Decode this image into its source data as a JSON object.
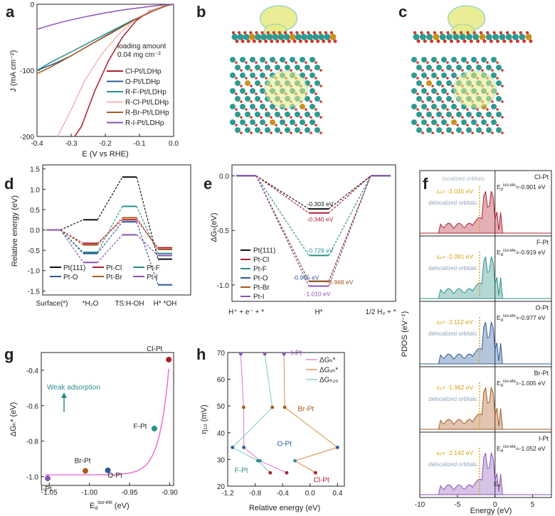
{
  "panel_labels": [
    "a",
    "b",
    "c",
    "d",
    "e",
    "f",
    "g",
    "h"
  ],
  "colors": {
    "Cl": "#b01c2e",
    "O": "#2c5a9a",
    "F": "#2a8f8a",
    "Br": "#a8591e",
    "I": "#8a52b5",
    "Pt111": "#111111",
    "RCl": "#f2b6b6",
    "atom_teal": "#2f9a90",
    "atom_red": "#cc3b2c",
    "atom_gold": "#c8921c",
    "cloud": "#e8ec8a",
    "cloud_edge": "#7fc9c0"
  },
  "chart_data": [
    {
      "id": "a",
      "type": "line",
      "xlabel": "E (V vs RHE)",
      "ylabel": "J (mA cm⁻²)",
      "xlim": [
        -0.4,
        0.0
      ],
      "ylim": [
        -200,
        0
      ],
      "xticks": [
        -0.4,
        -0.3,
        -0.2,
        -0.1,
        0.0
      ],
      "xtick_labels": [
        "-0.4",
        "-0.3",
        "-0.2",
        "-0.1",
        "0.0"
      ],
      "yticks": [
        0,
        -100,
        -200
      ],
      "ytick_labels": [
        "0",
        "-100",
        "-200"
      ],
      "annotation": [
        "loading amount",
        "0.04 mg cm⁻²"
      ],
      "series": [
        {
          "name": "Cl-Pt/LDHp",
          "color": "#b01c2e",
          "x": [
            0,
            -0.03,
            -0.07,
            -0.11,
            -0.15,
            -0.19,
            -0.23,
            -0.27,
            -0.29
          ],
          "y": [
            0,
            -3,
            -10,
            -25,
            -50,
            -85,
            -130,
            -185,
            -200
          ]
        },
        {
          "name": "O-Pt/LDHp",
          "color": "#2c5a9a",
          "x": [
            0,
            -0.02,
            -0.06,
            -0.12,
            -0.18,
            -0.24,
            -0.3,
            -0.35,
            -0.4
          ],
          "y": [
            0,
            -2,
            -10,
            -25,
            -42,
            -60,
            -78,
            -90,
            -100
          ]
        },
        {
          "name": "R-F-Pt/LDHp",
          "color": "#2a8f8a",
          "x": [
            0,
            -0.02,
            -0.06,
            -0.12,
            -0.18,
            -0.24,
            -0.3,
            -0.36,
            -0.4
          ],
          "y": [
            0,
            -2,
            -10,
            -24,
            -40,
            -56,
            -72,
            -88,
            -100
          ]
        },
        {
          "name": "R-Cl-Pt/LDHp",
          "color": "#f2b6b6",
          "x": [
            0,
            -0.02,
            -0.06,
            -0.11,
            -0.16,
            -0.21,
            -0.26,
            -0.3,
            -0.34
          ],
          "y": [
            0,
            -2,
            -8,
            -22,
            -45,
            -75,
            -115,
            -160,
            -200
          ]
        },
        {
          "name": "R-Br-Pt/LDHp",
          "color": "#a8591e",
          "x": [
            0,
            -0.02,
            -0.06,
            -0.12,
            -0.18,
            -0.24,
            -0.3,
            -0.36,
            -0.4
          ],
          "y": [
            0,
            -2,
            -10,
            -25,
            -43,
            -60,
            -78,
            -95,
            -105
          ]
        },
        {
          "name": "R-I-Pt/LDHp",
          "color": "#8a52b5",
          "x": [
            0,
            -0.03,
            -0.08,
            -0.14,
            -0.2,
            -0.26,
            -0.32,
            -0.37,
            -0.4
          ],
          "y": [
            0,
            -1,
            -4,
            -8,
            -13,
            -19,
            -26,
            -33,
            -38
          ]
        }
      ]
    },
    {
      "id": "d",
      "type": "line",
      "title": "",
      "ylabel": "Relative energy (eV)",
      "categories": [
        "Surface(*)",
        "*H₂O",
        "TS:H-OH",
        "H* *OH"
      ],
      "ylim": [
        -1.6,
        1.6
      ],
      "yticks": [
        1.5,
        1.0,
        0.5,
        0.0,
        -0.5,
        -1.0,
        -1.5
      ],
      "ytick_labels": [
        "1.5",
        "1.0",
        "0.5",
        "0.0",
        "-0.5",
        "-1.0",
        "-1.5"
      ],
      "legend_position": "bottom",
      "series": [
        {
          "name": "Pt(111)",
          "color": "#111111",
          "values": [
            0,
            0.25,
            1.3,
            -0.72
          ]
        },
        {
          "name": "Pt-Cl",
          "color": "#b01c2e",
          "values": [
            0,
            -0.33,
            0.25,
            -0.44
          ]
        },
        {
          "name": "Pt-F",
          "color": "#2a8f8a",
          "values": [
            0,
            -0.55,
            0.58,
            -0.58
          ]
        },
        {
          "name": "Pt-O",
          "color": "#2c5a9a",
          "values": [
            0,
            -0.58,
            0.2,
            -1.35
          ]
        },
        {
          "name": "Pt-Br",
          "color": "#a8591e",
          "values": [
            0,
            -0.37,
            0.3,
            -0.48
          ]
        },
        {
          "name": "Pt-I",
          "color": "#8a52b5",
          "values": [
            0,
            -0.8,
            -0.12,
            -0.63
          ]
        }
      ]
    },
    {
      "id": "e",
      "type": "line",
      "ylabel": "ΔGₕ(eV)",
      "categories": [
        "H⁺ + e⁻ + *",
        "H*",
        "1/2 H₂ + *"
      ],
      "ylim": [
        -1.15,
        0.1
      ],
      "yticks": [
        0.0,
        -0.5,
        -1.0
      ],
      "ytick_labels": [
        "0.0",
        "-0.5",
        "-1.0"
      ],
      "legend_position": "bottom-left",
      "series": [
        {
          "name": "Pt(111)",
          "color": "#111111",
          "values": [
            0,
            -0.303,
            0
          ],
          "label": "-0.303 eV"
        },
        {
          "name": "Pt-Cl",
          "color": "#b01c2e",
          "values": [
            0,
            -0.34,
            0
          ],
          "label": "-0.340 eV"
        },
        {
          "name": "Pt-F",
          "color": "#2a8f8a",
          "values": [
            0,
            -0.729,
            0
          ],
          "label": "-0.729 eV"
        },
        {
          "name": "Pt-O",
          "color": "#2c5a9a",
          "values": [
            0,
            -0.965,
            0
          ],
          "label": "-0.965 eV"
        },
        {
          "name": "Pt-Br",
          "color": "#a8591e",
          "values": [
            0,
            -0.968,
            0
          ],
          "label": "-0.968 eV"
        },
        {
          "name": "Pt-I",
          "color": "#8a52b5",
          "values": [
            0,
            -1.01,
            0
          ],
          "label": "-1.010 eV"
        }
      ]
    },
    {
      "id": "g",
      "type": "scatter",
      "xlabel": "Eᵈ iso-ele (eV)",
      "xlabel_main": "E",
      "xlabel_sub": "d",
      "xlabel_sup": "iso-ele",
      "xlabel_unit": "(eV)",
      "ylabel": "ΔGₕ* (eV)",
      "xlim": [
        -1.06,
        -0.895
      ],
      "ylim": [
        -1.05,
        -0.3
      ],
      "xticks": [
        -1.05,
        -1.0,
        -0.95,
        -0.9
      ],
      "xtick_labels": [
        "-1.05",
        "-1.00",
        "-0.95",
        "-0.90"
      ],
      "yticks": [
        -0.4,
        -0.6,
        -0.8,
        -1.0
      ],
      "ytick_labels": [
        "-0.4",
        "-0.6",
        "-0.8",
        "-1.0"
      ],
      "annotation": "Weak adsorption",
      "points": [
        {
          "name": "I-Pt",
          "x": -1.052,
          "y": -1.01,
          "color": "#8a52b5"
        },
        {
          "name": "Br-Pt",
          "x": -1.005,
          "y": -0.968,
          "color": "#a8591e"
        },
        {
          "name": "O-Pt",
          "x": -0.977,
          "y": -0.965,
          "color": "#2c5a9a"
        },
        {
          "name": "F-Pt",
          "x": -0.919,
          "y": -0.729,
          "color": "#2a8f8a"
        },
        {
          "name": "Cl-Pt",
          "x": -0.901,
          "y": -0.34,
          "color": "#b01c2e"
        }
      ],
      "fit_color": "#e87ad0"
    },
    {
      "id": "h",
      "type": "scatter",
      "xlabel": "Relative energy (eV)",
      "ylabel": "η₁₀ (mV)",
      "xlim": [
        -1.2,
        0.5
      ],
      "ylim": [
        20,
        70
      ],
      "xticks": [
        -1.2,
        -0.8,
        -0.4,
        0.0,
        0.4
      ],
      "xtick_labels": [
        "-1.2",
        "-0.8",
        "-0.4",
        "0.0",
        "0.4"
      ],
      "yticks": [
        20,
        30,
        40,
        50,
        60,
        70
      ],
      "ytick_labels": [
        "20",
        "30",
        "40",
        "50",
        "60",
        "70"
      ],
      "legend": [
        "ΔGₕ*",
        "ΔGₒₕ*",
        "ΔGₕ₂ₒ"
      ],
      "series": [
        {
          "name": "ΔGₕ*",
          "color": "#e38ad8",
          "points": [
            [
              -1.01,
              69.5
            ],
            [
              -0.968,
              49.5
            ],
            [
              -0.965,
              34.5
            ],
            [
              -0.729,
              29.5
            ],
            [
              -0.34,
              25
            ]
          ]
        },
        {
          "name": "ΔGₒₕ*",
          "color": "#d9a05a",
          "points": [
            [
              -0.38,
              69.5
            ],
            [
              -0.37,
              49.5
            ],
            [
              0.4,
              34.5
            ],
            [
              -0.22,
              29.5
            ],
            [
              0.08,
              25
            ]
          ]
        },
        {
          "name": "ΔGₕ₂ₒ",
          "color": "#8fd1c8",
          "points": [
            [
              -0.66,
              69.5
            ],
            [
              -0.55,
              49.5
            ],
            [
              -1.13,
              34.5
            ],
            [
              -0.76,
              29.5
            ],
            [
              -0.58,
              25
            ]
          ]
        }
      ],
      "point_colors": [
        "#8a52b5",
        "#a8591e",
        "#2c5a9a",
        "#2a8f8a",
        "#b01c2e"
      ],
      "point_labels": [
        {
          "text": "I-Pt",
          "color": "#8a52b5",
          "x": -0.28,
          "y": 69
        },
        {
          "text": "Br-Pt",
          "color": "#a8591e",
          "x": -0.18,
          "y": 48
        },
        {
          "text": "O-Pt",
          "color": "#2c5a9a",
          "x": -0.48,
          "y": 35
        },
        {
          "text": "F-Pt",
          "color": "#2a8f8a",
          "x": -1.1,
          "y": 25
        },
        {
          "text": "Cl-Pt",
          "color": "#b01c2e",
          "x": 0.05,
          "y": 21.5
        }
      ]
    },
    {
      "id": "f",
      "type": "area",
      "xlabel": "Energy (eV)",
      "ylabel": "PDOS (eV⁻¹)",
      "xlim": [
        -10,
        7.5
      ],
      "xticks": [
        -10,
        -5,
        0,
        5
      ],
      "xtick_labels": [
        "-10",
        "-5",
        "0",
        "5"
      ],
      "ef_label": "Eₒ",
      "sub_panels": [
        {
          "name": "Cl-Pt",
          "color": "#b01c2e",
          "eps": "εₑ= -2.015 eV",
          "eiso_prefix": "E",
          "eiso_sub": "d",
          "eiso_sup": "iso-ele",
          "eiso_value": "=-0.901 eV"
        },
        {
          "name": "F-Pt",
          "color": "#2a8f8a",
          "eps": "εₑ= -2.091 eV",
          "eiso_prefix": "E",
          "eiso_sub": "d",
          "eiso_sup": "iso-ele",
          "eiso_value": "=-0.919 eV"
        },
        {
          "name": "O-Pt",
          "color": "#2c5a9a",
          "eps": "εₑ= -2.112 eV",
          "eiso_prefix": "E",
          "eiso_sub": "d",
          "eiso_sup": "iso-ele",
          "eiso_value": "=-0.977 eV"
        },
        {
          "name": "Br-Pt",
          "color": "#a8591e",
          "eps": "εₑ= -1.962 eV",
          "eiso_prefix": "E",
          "eiso_sub": "d",
          "eiso_sup": "iso-ele",
          "eiso_value": "=-1.005 eV"
        },
        {
          "name": "I-Pt",
          "color": "#8a52b5",
          "eps": "εₑ= -2.142 eV",
          "eiso_prefix": "E",
          "eiso_sub": "d",
          "eiso_sup": "iso-ele",
          "eiso_value": "=-1.052 eV"
        }
      ],
      "localized_label": "localized orbitals",
      "delocalized_label": "delocalized orbitals"
    }
  ]
}
